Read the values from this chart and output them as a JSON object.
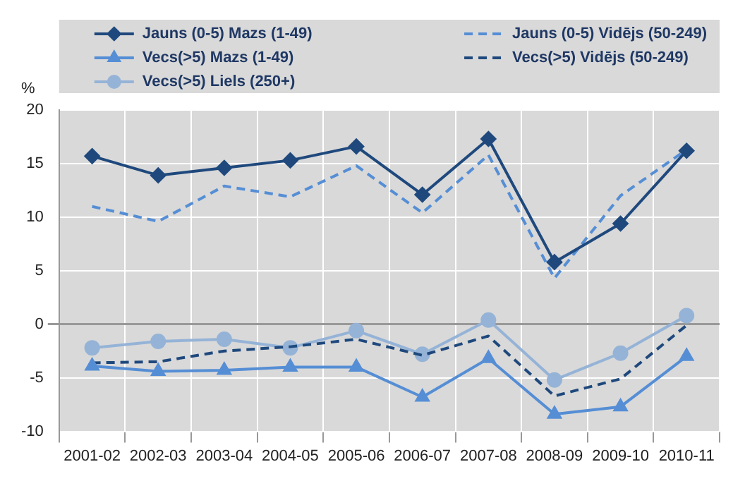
{
  "chart_data": {
    "type": "line",
    "ylabel": "%",
    "categories": [
      "2001-02",
      "2002-03",
      "2003-04",
      "2004-05",
      "2005-06",
      "2006-07",
      "2007-08",
      "2008-09",
      "2009-10",
      "2010-11"
    ],
    "series": [
      {
        "name": "Jauns (0-5) Mazs (1-49)",
        "color": "#1f497d",
        "marker": "diamond",
        "line_style": "solid",
        "values": [
          15.7,
          13.9,
          14.6,
          15.3,
          16.6,
          12.1,
          17.3,
          5.8,
          9.4,
          16.2
        ]
      },
      {
        "name": "Jauns (0-5) Vidējs (50-249)",
        "color": "#558ed5",
        "marker": "none",
        "line_style": "dashed",
        "values": [
          11.0,
          9.6,
          12.9,
          11.9,
          14.8,
          10.4,
          15.8,
          4.3,
          12.0,
          16.3
        ]
      },
      {
        "name": "Vecs(>5) Mazs (1-49)",
        "color": "#558ed5",
        "marker": "triangle",
        "line_style": "solid",
        "values": [
          -3.9,
          -4.4,
          -4.3,
          -4.0,
          -4.0,
          -6.8,
          -3.2,
          -8.4,
          -7.7,
          -3.0
        ]
      },
      {
        "name": "Vecs(>5) Vidējs (50-249)",
        "color": "#1f497d",
        "marker": "none",
        "line_style": "dashed",
        "values": [
          -3.6,
          -3.5,
          -2.5,
          -2.1,
          -1.4,
          -2.9,
          -1.1,
          -6.7,
          -5.1,
          -0.1
        ]
      },
      {
        "name": "Vecs(>5) Liels (250+)",
        "color": "#95b3d7",
        "marker": "circle",
        "line_style": "solid",
        "values": [
          -2.2,
          -1.6,
          -1.4,
          -2.2,
          -0.6,
          -2.8,
          0.4,
          -5.2,
          -2.7,
          0.8
        ]
      }
    ],
    "ylim": [
      -10,
      20
    ],
    "yticks": [
      -10,
      -5,
      0,
      5,
      10,
      15,
      20
    ],
    "grid": true,
    "legend": "top"
  }
}
